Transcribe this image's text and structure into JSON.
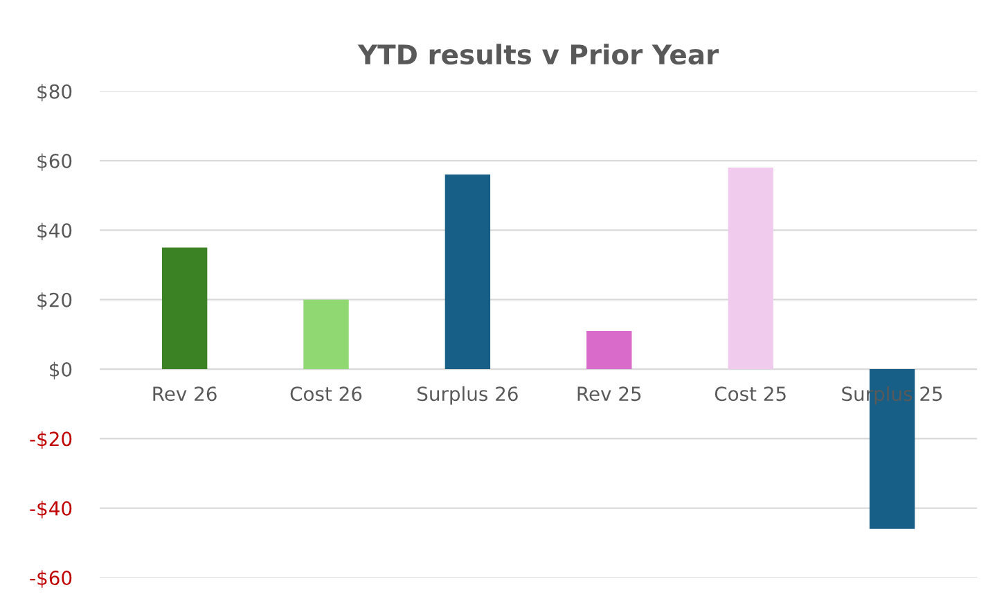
{
  "chart_data": {
    "type": "bar",
    "title": "YTD results v Prior Year",
    "categories": [
      "Rev 26",
      "Cost 26",
      "Surplus 26",
      "Rev 25",
      "Cost 25",
      "Surplus 25"
    ],
    "values": [
      35,
      20,
      56,
      11,
      58,
      -46
    ],
    "colors": [
      "#3b8224",
      "#8fd872",
      "#175f86",
      "#d96bcb",
      "#f0cbee",
      "#175f86"
    ],
    "ylim": [
      -60,
      80
    ],
    "yticks": [
      {
        "value": -60,
        "label": "-$60"
      },
      {
        "value": -40,
        "label": "-$40"
      },
      {
        "value": -20,
        "label": "-$20"
      },
      {
        "value": 0,
        "label": "$0"
      },
      {
        "value": 20,
        "label": "$20"
      },
      {
        "value": 40,
        "label": "$40"
      },
      {
        "value": 60,
        "label": "$60"
      },
      {
        "value": 80,
        "label": "$80"
      }
    ],
    "grid": "y"
  }
}
